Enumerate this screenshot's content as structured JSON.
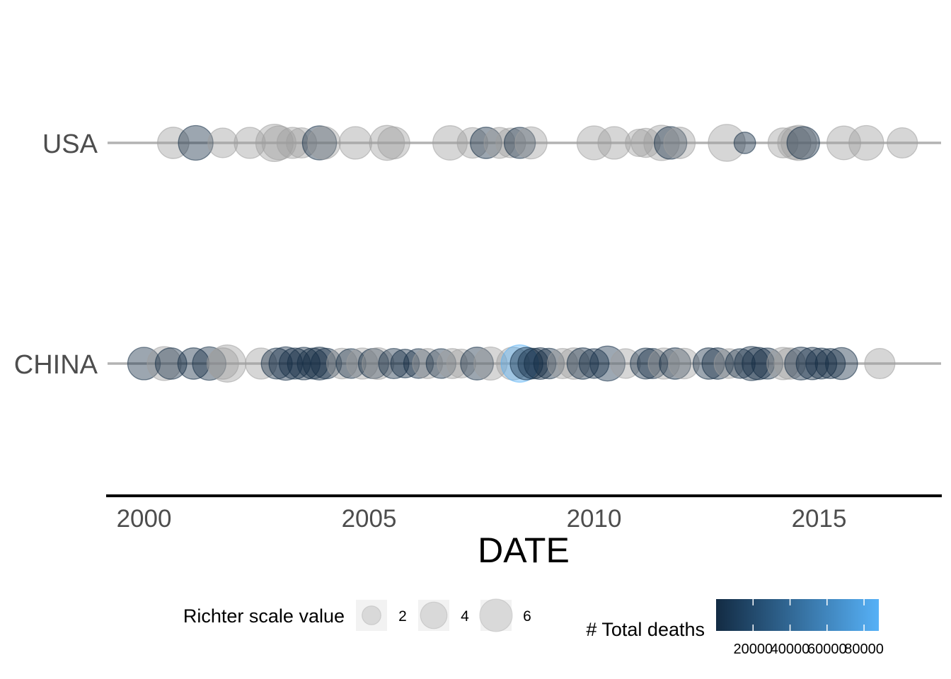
{
  "chart_data": {
    "type": "scatter",
    "title": "",
    "xlabel": "DATE",
    "ylabel": "",
    "x_ticks": [
      "2000",
      "2005",
      "2010",
      "2015"
    ],
    "xlim": [
      1999.2,
      2017.7
    ],
    "categories": [
      "USA",
      "CHINA"
    ],
    "grid": false,
    "size_legend": {
      "title": "Richter scale value",
      "values": [
        2,
        4,
        6
      ]
    },
    "color_legend": {
      "title": "# Total deaths",
      "ticks": [
        20000,
        40000,
        60000,
        80000
      ],
      "tick_labels": [
        "20000",
        "40000",
        "60000",
        "80000"
      ],
      "range": [
        0,
        88000
      ],
      "low_color": "#132B43",
      "high_color": "#56B1F7"
    },
    "na_color": "#9e9e9e",
    "series": [
      {
        "name": "USA",
        "points": [
          {
            "x": 2000.65,
            "richter": 5.6
          },
          {
            "x": 2001.15,
            "richter": 6.8,
            "deaths": 1
          },
          {
            "x": 2001.75,
            "richter": 5.0
          },
          {
            "x": 2002.35,
            "richter": 5.5
          },
          {
            "x": 2002.9,
            "richter": 7.9
          },
          {
            "x": 2003.0,
            "richter": 6.5
          },
          {
            "x": 2003.3,
            "richter": 5.5
          },
          {
            "x": 2003.5,
            "richter": 5.2
          },
          {
            "x": 2003.9,
            "richter": 6.6,
            "deaths": 2
          },
          {
            "x": 2004.0,
            "richter": 6.0
          },
          {
            "x": 2004.7,
            "richter": 6.0
          },
          {
            "x": 2005.4,
            "richter": 6.9
          },
          {
            "x": 2005.55,
            "richter": 5.8
          },
          {
            "x": 2006.8,
            "richter": 6.7
          },
          {
            "x": 2007.3,
            "richter": 5.3
          },
          {
            "x": 2007.6,
            "richter": 5.6,
            "deaths": 15
          },
          {
            "x": 2007.9,
            "richter": 5.4
          },
          {
            "x": 2008.15,
            "richter": 5.0
          },
          {
            "x": 2008.35,
            "richter": 5.5,
            "deaths": 3
          },
          {
            "x": 2008.6,
            "richter": 5.8
          },
          {
            "x": 2010.0,
            "richter": 6.5
          },
          {
            "x": 2010.45,
            "richter": 6.0
          },
          {
            "x": 2011.0,
            "richter": 4.2
          },
          {
            "x": 2011.15,
            "richter": 4.8
          },
          {
            "x": 2011.5,
            "richter": 7.1
          },
          {
            "x": 2011.7,
            "richter": 6.0,
            "deaths": 1
          },
          {
            "x": 2011.9,
            "richter": 5.6
          },
          {
            "x": 2012.95,
            "richter": 7.7
          },
          {
            "x": 2013.35,
            "richter": 2.6,
            "deaths": 1
          },
          {
            "x": 2014.2,
            "richter": 5.1
          },
          {
            "x": 2014.45,
            "richter": 6.2
          },
          {
            "x": 2014.55,
            "richter": 7.0
          },
          {
            "x": 2014.65,
            "richter": 6.0,
            "deaths": 1
          },
          {
            "x": 2015.55,
            "richter": 6.4
          },
          {
            "x": 2016.05,
            "richter": 6.8
          },
          {
            "x": 2016.85,
            "richter": 5.2
          }
        ]
      },
      {
        "name": "CHINA",
        "points": [
          {
            "x": 2000.0,
            "richter": 6.0,
            "deaths": 7
          },
          {
            "x": 2000.45,
            "richter": 6.5
          },
          {
            "x": 2000.6,
            "richter": 5.6,
            "deaths": 2
          },
          {
            "x": 2001.1,
            "richter": 5.6,
            "deaths": 3
          },
          {
            "x": 2001.45,
            "richter": 6.3,
            "deaths": 1
          },
          {
            "x": 2001.75,
            "richter": 5.6
          },
          {
            "x": 2001.85,
            "richter": 7.8
          },
          {
            "x": 2002.6,
            "richter": 5.5
          },
          {
            "x": 2002.95,
            "richter": 5.4,
            "deaths": 4
          },
          {
            "x": 2003.15,
            "richter": 6.3,
            "deaths": 268
          },
          {
            "x": 2003.35,
            "richter": 5.5,
            "deaths": 10
          },
          {
            "x": 2003.55,
            "richter": 6.0,
            "deaths": 16
          },
          {
            "x": 2003.75,
            "richter": 5.4,
            "deaths": 3
          },
          {
            "x": 2003.9,
            "richter": 6.1,
            "deaths": 8
          },
          {
            "x": 2004.05,
            "richter": 5.3,
            "deaths": 4
          },
          {
            "x": 2004.4,
            "richter": 5.3
          },
          {
            "x": 2004.6,
            "richter": 5.0,
            "deaths": 2
          },
          {
            "x": 2004.85,
            "richter": 5.5
          },
          {
            "x": 2005.1,
            "richter": 5.2,
            "deaths": 1
          },
          {
            "x": 2005.2,
            "richter": 5.7
          },
          {
            "x": 2005.55,
            "richter": 5.2,
            "deaths": 1
          },
          {
            "x": 2005.8,
            "richter": 4.6,
            "deaths": 13
          },
          {
            "x": 2006.1,
            "richter": 5.0,
            "deaths": 1
          },
          {
            "x": 2006.3,
            "richter": 5.1
          },
          {
            "x": 2006.6,
            "richter": 5.0,
            "deaths": 2
          },
          {
            "x": 2006.85,
            "richter": 5.1
          },
          {
            "x": 2007.05,
            "richter": 4.7
          },
          {
            "x": 2007.4,
            "richter": 6.1,
            "deaths": 3
          },
          {
            "x": 2007.7,
            "richter": 6.2
          },
          {
            "x": 2008.2,
            "richter": 6.1
          },
          {
            "x": 2008.35,
            "richter": 7.9,
            "deaths": 87652
          },
          {
            "x": 2008.5,
            "richter": 6.0,
            "deaths": 40
          },
          {
            "x": 2008.65,
            "richter": 5.3,
            "deaths": 5
          },
          {
            "x": 2008.8,
            "richter": 5.7,
            "deaths": 7
          },
          {
            "x": 2009.0,
            "richter": 5.3,
            "deaths": 2
          },
          {
            "x": 2009.3,
            "richter": 5.2
          },
          {
            "x": 2009.55,
            "richter": 5.6
          },
          {
            "x": 2009.75,
            "richter": 5.6,
            "deaths": 1
          },
          {
            "x": 2010.0,
            "richter": 5.0,
            "deaths": 3
          },
          {
            "x": 2010.3,
            "richter": 6.9,
            "deaths": 2698
          },
          {
            "x": 2010.7,
            "richter": 5.0
          },
          {
            "x": 2011.15,
            "richter": 5.4,
            "deaths": 1
          },
          {
            "x": 2011.3,
            "richter": 5.2,
            "deaths": 25
          },
          {
            "x": 2011.55,
            "richter": 5.5
          },
          {
            "x": 2011.8,
            "richter": 5.6,
            "deaths": 2
          },
          {
            "x": 2012.0,
            "richter": 5.3
          },
          {
            "x": 2012.55,
            "richter": 5.6,
            "deaths": 3
          },
          {
            "x": 2012.75,
            "richter": 5.6,
            "deaths": 81
          },
          {
            "x": 2013.0,
            "richter": 5.0
          },
          {
            "x": 2013.25,
            "richter": 5.0,
            "deaths": 4
          },
          {
            "x": 2013.5,
            "richter": 6.6,
            "deaths": 196
          },
          {
            "x": 2013.65,
            "richter": 5.9,
            "deaths": 95
          },
          {
            "x": 2013.85,
            "richter": 5.5,
            "deaths": 5
          },
          {
            "x": 2014.2,
            "richter": 5.9
          },
          {
            "x": 2014.35,
            "richter": 5.6
          },
          {
            "x": 2014.6,
            "richter": 6.1,
            "deaths": 617
          },
          {
            "x": 2014.85,
            "richter": 5.9,
            "deaths": 4
          },
          {
            "x": 2015.05,
            "richter": 5.4,
            "deaths": 1
          },
          {
            "x": 2015.25,
            "richter": 5.1,
            "deaths": 14
          },
          {
            "x": 2015.5,
            "richter": 5.8,
            "deaths": 1
          },
          {
            "x": 2016.35,
            "richter": 5.2
          }
        ]
      }
    ]
  }
}
